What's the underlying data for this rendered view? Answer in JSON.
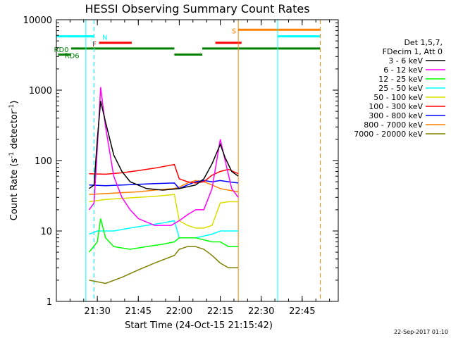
{
  "chart_data": {
    "type": "line",
    "title": "HESSI Observing Summary Count Rates",
    "xlabel": "Start Time (24-Oct-15 21:15:42)",
    "ylabel": "Count Rate (s-1 detector-1)",
    "ylabel_parts": {
      "pre": "Count Rate (s",
      "exp1": "-1",
      "mid": " detector",
      "exp2": "-1",
      "post": ")"
    },
    "yscale": "log",
    "ylim": [
      1,
      10000
    ],
    "xlim": [
      21.25,
      22.97
    ],
    "x_ticks": [
      {
        "value": 21.5,
        "label": "21:30"
      },
      {
        "value": 21.75,
        "label": "21:45"
      },
      {
        "value": 22.0,
        "label": "22:00"
      },
      {
        "value": 22.25,
        "label": "22:15"
      },
      {
        "value": 22.5,
        "label": "22:30"
      },
      {
        "value": 22.75,
        "label": "22:45"
      }
    ],
    "y_ticks": [
      {
        "value": 1,
        "label": "1"
      },
      {
        "value": 10,
        "label": "10"
      },
      {
        "value": 100,
        "label": "100"
      },
      {
        "value": 1000,
        "label": "1000"
      },
      {
        "value": 10000,
        "label": "10000"
      }
    ],
    "legend_header": [
      "Det 1,5,7,",
      "FDecim 1, Att 0"
    ],
    "legend_position": "right",
    "timestamp": "22-Sep-2017 01:10",
    "series": [
      {
        "name": "3 - 6 keV",
        "color": "#000000",
        "x": [
          21.45,
          21.48,
          21.5,
          21.52,
          21.55,
          21.6,
          21.65,
          21.7,
          21.8,
          21.9,
          22.0,
          22.1,
          22.15,
          22.2,
          22.25,
          22.28,
          22.32,
          22.36
        ],
        "y": [
          40,
          45,
          200,
          700,
          350,
          120,
          70,
          50,
          40,
          38,
          40,
          45,
          55,
          90,
          170,
          110,
          70,
          60
        ]
      },
      {
        "name": "6 - 12 keV",
        "color": "#ff00ff",
        "x": [
          21.45,
          21.48,
          21.5,
          21.52,
          21.55,
          21.6,
          21.65,
          21.7,
          21.75,
          21.85,
          21.95,
          22.0,
          22.05,
          22.1,
          22.15,
          22.2,
          22.25,
          22.28,
          22.32,
          22.36
        ],
        "y": [
          20,
          25,
          150,
          1100,
          300,
          60,
          30,
          20,
          15,
          12,
          12,
          14,
          17,
          20,
          20,
          40,
          200,
          100,
          40,
          30
        ]
      },
      {
        "name": "12 - 25 keV",
        "color": "#00ff00",
        "x": [
          21.45,
          21.5,
          21.52,
          21.55,
          21.6,
          21.7,
          21.8,
          21.9,
          21.97,
          22.0,
          22.1,
          22.2,
          22.25,
          22.3,
          22.36
        ],
        "y": [
          5,
          7,
          15,
          8,
          6,
          5.5,
          6,
          6.5,
          7,
          8,
          8,
          7,
          7,
          6,
          6
        ]
      },
      {
        "name": "25 - 50 keV",
        "color": "#00ffff",
        "x": [
          21.45,
          21.5,
          21.55,
          21.6,
          21.7,
          21.8,
          21.9,
          21.97,
          22.0,
          22.1,
          22.2,
          22.25,
          22.3,
          22.36
        ],
        "y": [
          9,
          10,
          10,
          10,
          11,
          12,
          13,
          14,
          8,
          8,
          9,
          10,
          10,
          10
        ]
      },
      {
        "name": "50 - 100 keV",
        "color": "#dddd00",
        "x": [
          21.45,
          21.55,
          21.65,
          21.75,
          21.85,
          21.97,
          22.0,
          22.05,
          22.1,
          22.15,
          22.2,
          22.25,
          22.3,
          22.36
        ],
        "y": [
          26,
          28,
          29,
          30,
          31,
          33,
          14,
          12,
          11,
          11,
          12,
          25,
          26,
          26
        ]
      },
      {
        "name": "100 - 300 keV",
        "color": "#ff0000",
        "x": [
          21.45,
          21.55,
          21.65,
          21.75,
          21.85,
          21.97,
          22.0,
          22.05,
          22.1,
          22.15,
          22.2,
          22.25,
          22.3,
          22.36
        ],
        "y": [
          65,
          64,
          67,
          72,
          78,
          88,
          55,
          50,
          48,
          50,
          62,
          70,
          75,
          65
        ]
      },
      {
        "name": "300 - 800 keV",
        "color": "#0000ff",
        "x": [
          21.45,
          21.55,
          21.65,
          21.75,
          21.85,
          21.97,
          22.0,
          22.05,
          22.1,
          22.15,
          22.2,
          22.25,
          22.3,
          22.36
        ],
        "y": [
          45,
          44,
          45,
          46,
          47,
          48,
          40,
          45,
          50,
          52,
          50,
          52,
          50,
          48
        ]
      },
      {
        "name": "800 - 7000 keV",
        "color": "#ff8000",
        "x": [
          21.45,
          21.55,
          21.65,
          21.75,
          21.85,
          21.97,
          22.0,
          22.05,
          22.1,
          22.15,
          22.2,
          22.25,
          22.3,
          22.36
        ],
        "y": [
          33,
          34,
          35,
          36,
          38,
          40,
          42,
          48,
          52,
          50,
          45,
          40,
          38,
          36
        ]
      },
      {
        "name": "7000 - 20000 keV",
        "color": "#808000",
        "x": [
          21.45,
          21.55,
          21.65,
          21.75,
          21.85,
          21.97,
          22.0,
          22.05,
          22.1,
          22.15,
          22.2,
          22.25,
          22.3,
          22.36
        ],
        "y": [
          2,
          1.8,
          2.2,
          2.8,
          3.5,
          4.5,
          5.5,
          6,
          6,
          5.5,
          4.5,
          3.5,
          3,
          3
        ]
      }
    ],
    "flag_bars": [
      {
        "label": "N",
        "color": "#00ffff",
        "y": 5800,
        "segments": [
          [
            21.25,
            21.48
          ],
          [
            22.6,
            22.86
          ]
        ],
        "label_x": 21.53
      },
      {
        "label": "S",
        "color": "#ff8000",
        "y": 7200,
        "segments": [
          [
            22.36,
            22.86
          ]
        ],
        "label_x": 22.32
      },
      {
        "label": "F",
        "color": "#ff0000",
        "y": 4700,
        "segments": [
          [
            21.51,
            21.71
          ],
          [
            22.22,
            22.38
          ]
        ],
        "label_x": 21.47
      },
      {
        "label": "RD0",
        "color": "#008000",
        "y": 3900,
        "segments": [
          [
            21.34,
            21.97
          ],
          [
            22.14,
            22.86
          ]
        ],
        "label_x": 21.235
      },
      {
        "label": "RD6",
        "color": "#008000",
        "y": 3200,
        "segments": [
          [
            21.26,
            21.34
          ],
          [
            21.97,
            22.14
          ]
        ],
        "label_x": 21.3
      }
    ],
    "vertical_markers": [
      {
        "x": 21.25,
        "color": "#00ffff",
        "style": "solid"
      },
      {
        "x": 21.43,
        "color": "#00ffff",
        "style": "solid"
      },
      {
        "x": 21.48,
        "color": "#00ffff",
        "style": "dashed"
      },
      {
        "x": 22.36,
        "color": "#ff8000",
        "style": "solid"
      },
      {
        "x": 22.6,
        "color": "#00ffff",
        "style": "solid"
      },
      {
        "x": 22.86,
        "color": "#ff8000",
        "style": "dashed"
      }
    ]
  }
}
